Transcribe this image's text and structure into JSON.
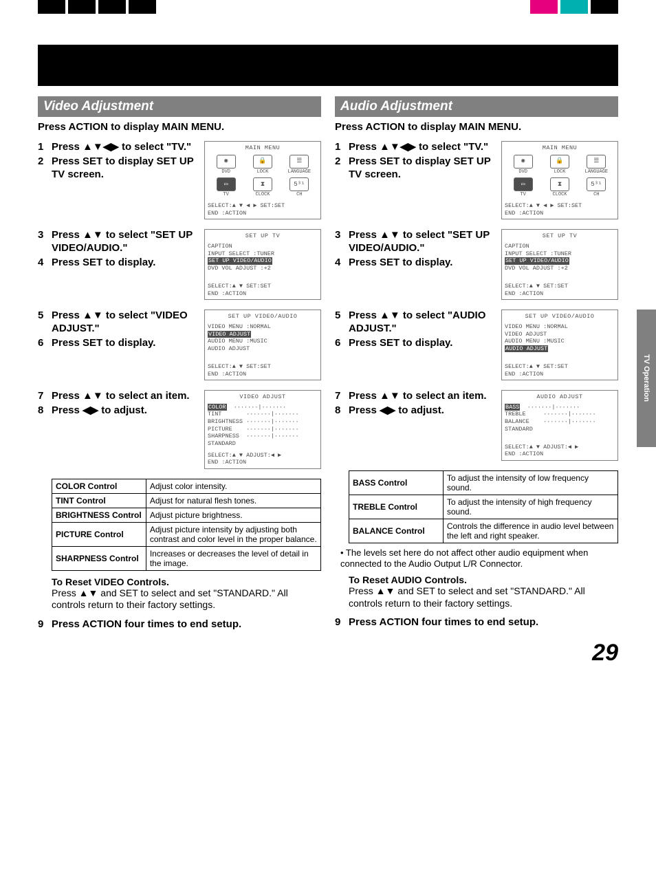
{
  "side_tab": "TV Operation",
  "page_number": "29",
  "arrows_ud": "▲▼",
  "arrows_lr": "◀▶",
  "arrows_all": "▲▼◀▶",
  "osd_select4": "SELECT:▲ ▼ ◀ ▶  SET:SET",
  "osd_select2": "SELECT:▲ ▼      SET:SET",
  "osd_select_adj": "SELECT:▲ ▼   ADJUST:◀ ▶",
  "osd_end": "END  :ACTION",
  "video": {
    "header": "Video Adjustment",
    "intro": "Press ACTION to display MAIN MENU.",
    "steps": {
      "s1a": "Press ▲▼◀▶ to select \"TV.\"",
      "s2a": "Press SET to display SET UP TV screen.",
      "s3a": "Press ▲▼ to select \"SET UP VIDEO/AUDIO.\"",
      "s4a": "Press SET to display.",
      "s5a": "Press ▲▼ to select \"VIDEO ADJUST.\"",
      "s6a": "Press SET to display.",
      "s7a": "Press ▲▼ to select an item.",
      "s8a": "Press ◀▶ to adjust.",
      "s9a": "Press ACTION four times to end setup."
    },
    "reset_hdr": "To Reset VIDEO Controls.",
    "reset_body": "Press ▲▼ and SET to select and set \"STANDARD.\" All controls return to their factory settings.",
    "table": [
      [
        "COLOR Control",
        "Adjust color intensity."
      ],
      [
        "TINT Control",
        "Adjust for natural flesh tones."
      ],
      [
        "BRIGHTNESS Control",
        "Adjust picture brightness."
      ],
      [
        "PICTURE Control",
        "Adjust picture intensity by adjusting both contrast and color level in the proper balance."
      ],
      [
        "SHARPNESS Control",
        "Increases or decreases the level of detail in the image."
      ]
    ]
  },
  "audio": {
    "header": "Audio Adjustment",
    "intro": "Press ACTION to display MAIN MENU.",
    "steps": {
      "s1a": "Press ▲▼◀▶ to select \"TV.\"",
      "s2a": "Press SET to display SET UP TV screen.",
      "s3a": "Press ▲▼ to select \"SET UP VIDEO/AUDIO.\"",
      "s4a": "Press SET to display.",
      "s5a": "Press ▲▼ to select \"AUDIO ADJUST.\"",
      "s6a": "Press SET to display.",
      "s7a": "Press ▲▼ to select an item.",
      "s8a": "Press ◀▶ to adjust.",
      "s9a": "Press ACTION four times to end setup."
    },
    "note": "• The levels set here do not affect other audio equipment when connected to the Audio Output L/R Connector.",
    "reset_hdr": "To Reset AUDIO Controls.",
    "reset_body": "Press ▲▼ and SET to select and set \"STANDARD.\" All controls return to their factory settings.",
    "table": [
      [
        "BASS Control",
        "To adjust the intensity of low frequency sound."
      ],
      [
        "TREBLE Control",
        "To adjust the intensity of high frequency sound."
      ],
      [
        "BALANCE Control",
        "Controls the difference in audio level between the left and right speaker."
      ]
    ]
  },
  "osd": {
    "main_menu": {
      "title": "MAIN MENU",
      "row1": [
        "DVD",
        "LOCK",
        "LANGUAGE"
      ],
      "row2": [
        "TV",
        "CLOCK",
        "CH"
      ]
    },
    "setup_tv": {
      "title": "SET UP TV",
      "lines": [
        "CAPTION",
        "INPUT SELECT   :TUNER",
        "SET UP VIDEO/AUDIO",
        "DVD VOL ADJUST :+2"
      ],
      "hl_index": 2
    },
    "setup_va_video": {
      "title": "SET UP VIDEO/AUDIO",
      "lines": [
        "VIDEO MENU   :NORMAL",
        "VIDEO ADJUST",
        "AUDIO MENU   :MUSIC",
        "AUDIO ADJUST"
      ],
      "hl_index": 1
    },
    "setup_va_audio": {
      "title": "SET UP VIDEO/AUDIO",
      "lines": [
        "VIDEO MENU   :NORMAL",
        "VIDEO ADJUST",
        "AUDIO MENU   :MUSIC",
        "AUDIO ADJUST"
      ],
      "hl_index": 3
    },
    "video_adjust": {
      "title": "VIDEO ADJUST",
      "items": [
        "COLOR",
        "TINT",
        "BRIGHTNESS",
        "PICTURE",
        "SHARPNESS",
        "STANDARD"
      ],
      "hl_index": 0,
      "slider": "·······|·······"
    },
    "audio_adjust": {
      "title": "AUDIO ADJUST",
      "items": [
        "BASS",
        "TREBLE",
        "BALANCE",
        "STANDARD"
      ],
      "hl_index": 0,
      "slider": "·······|·······"
    }
  }
}
